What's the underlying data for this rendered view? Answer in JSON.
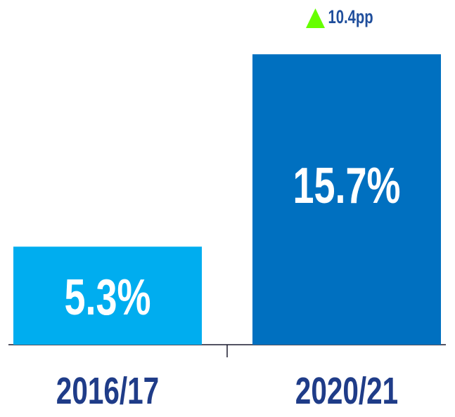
{
  "chart_data": {
    "type": "bar",
    "categories": [
      "2016/17",
      "2020/21"
    ],
    "values": [
      5.3,
      15.7
    ],
    "value_labels": [
      "5.3%",
      "15.7%"
    ],
    "colors": [
      "#00adef",
      "#0070c0"
    ],
    "annotation": "10.4pp"
  }
}
